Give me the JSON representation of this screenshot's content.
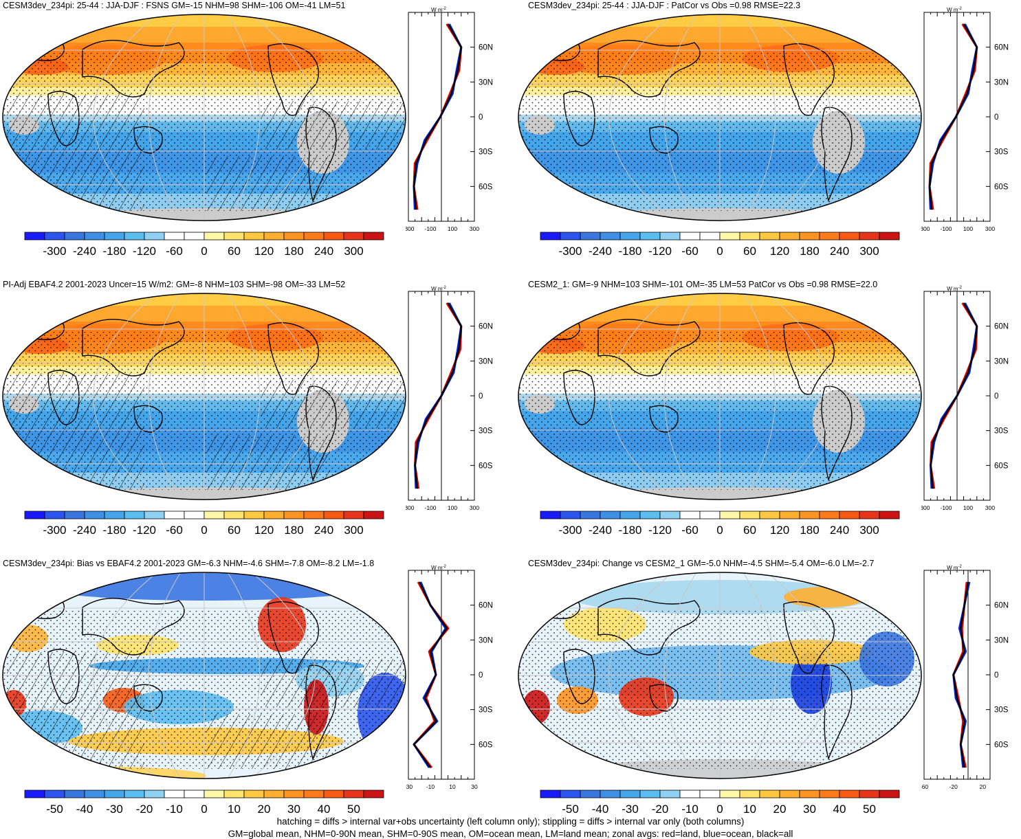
{
  "panels": [
    {
      "title": "CESM3dev_234pi: 25-44 : JJA-DJF : FSNS GM=-15 NHM=98 SHM=-106 OM=-41 LM=51",
      "style": "mean",
      "hatch": true,
      "zonal_xticks": [
        "-300",
        "-100",
        "100",
        "300"
      ],
      "cbar_labels": [
        "-300",
        "-240",
        "-180",
        "-120",
        "-60",
        "0",
        "60",
        "120",
        "180",
        "240",
        "300"
      ]
    },
    {
      "title": "CESM3dev_234pi: 25-44 : JJA-DJF : PatCor vs Obs =0.98 RMSE=22.3",
      "style": "mean",
      "hatch": false,
      "zonal_xticks": [
        "-300",
        "-100",
        "100",
        "300"
      ],
      "cbar_labels": [
        "-300",
        "-240",
        "-180",
        "-120",
        "-60",
        "0",
        "60",
        "120",
        "180",
        "240",
        "300"
      ]
    },
    {
      "title": "PI-Adj EBAF4.2 2001-2023 Uncer=15 W/m2: GM=-8 NHM=103 SHM=-98 OM=-33 LM=52",
      "style": "mean",
      "hatch": true,
      "zonal_xticks": [
        "-300",
        "-100",
        "100",
        "300"
      ],
      "cbar_labels": [
        "-300",
        "-240",
        "-180",
        "-120",
        "-60",
        "0",
        "60",
        "120",
        "180",
        "240",
        "300"
      ]
    },
    {
      "title": "CESM2_1: GM=-9 NHM=103 SHM=-101 OM=-35 LM=53 PatCor vs Obs =0.98 RMSE=22.0",
      "style": "mean",
      "hatch": false,
      "zonal_xticks": [
        "-300",
        "-100",
        "100",
        "300"
      ],
      "cbar_labels": [
        "-300",
        "-240",
        "-180",
        "-120",
        "-60",
        "0",
        "60",
        "120",
        "180",
        "240",
        "300"
      ]
    },
    {
      "title": "CESM3dev_234pi: Bias vs EBAF4.2 2001-2023 GM=-6.3 NHM=-4.6 SHM=-7.8 OM=-8.2 LM=-1.8",
      "style": "diff",
      "hatch": true,
      "zonal_xticks": [
        "-30",
        "-10",
        "10",
        "30"
      ],
      "cbar_labels": [
        "-50",
        "-40",
        "-30",
        "-20",
        "-10",
        "0",
        "10",
        "20",
        "30",
        "40",
        "50"
      ]
    },
    {
      "title": "CESM3dev_234pi: Change vs CESM2_1 GM=-5.0 NHM=-4.5 SHM=-5.4 OM=-6.0 LM=-2.7",
      "style": "diff",
      "hatch": false,
      "zonal_xticks": [
        "-60",
        "-20",
        "20"
      ],
      "cbar_labels": [
        "-50",
        "-40",
        "-30",
        "-20",
        "-10",
        "0",
        "10",
        "20",
        "30",
        "40",
        "50"
      ]
    }
  ],
  "zonal_unit": "W m",
  "zonal_unit_sup": "-2",
  "lat_labels": [
    "60N",
    "30N",
    "0",
    "30S",
    "60S"
  ],
  "colors": {
    "mean_scale": [
      "#1a1aff",
      "#2b55ee",
      "#3a76e0",
      "#3f8fe5",
      "#45a5ea",
      "#5bbdf0",
      "#8fd1f2",
      "#ffffff",
      "#ffffff",
      "#fff8a8",
      "#ffe36a",
      "#ffc840",
      "#ffae30",
      "#ff9422",
      "#ff7a18",
      "#f85a14",
      "#e8341a",
      "#cc1414"
    ],
    "land_missing": "#cccccc",
    "zonal_land": "#ee0000",
    "zonal_ocean": "#0022dd",
    "zonal_all": "#000000"
  },
  "caption_line1": "hatching = diffs > internal var+obs uncertainty (left column only); stippling = diffs > internal var only (both columns)",
  "caption_line2": "GM=global mean, NHM=0-90N mean, SHM=0-90S mean, OM=ocean mean, LM=land mean; zonal avgs: red=land, blue=ocean, black=all",
  "chart_data": [
    {
      "type": "heatmap",
      "title": "CESM3dev_234pi: 25-44 : JJA-DJF : FSNS GM=-15 NHM=98 SHM=-106 OM=-41 LM=51",
      "colorbar": {
        "min": -300,
        "max": 300,
        "step": 60
      },
      "zonal_mean": {
        "xlim": [
          -300,
          300
        ],
        "ylim": [
          -90,
          90
        ],
        "lat": [
          80,
          60,
          40,
          20,
          0,
          -20,
          -40,
          -60,
          -80
        ],
        "all": [
          60,
          180,
          150,
          90,
          -10,
          -140,
          -230,
          -250,
          -230
        ]
      }
    },
    {
      "type": "heatmap",
      "title": "CESM3dev_234pi: 25-44 : JJA-DJF : PatCor vs Obs =0.98 RMSE=22.3",
      "colorbar": {
        "min": -300,
        "max": 300,
        "step": 60
      },
      "zonal_mean": {
        "xlim": [
          -300,
          300
        ],
        "ylim": [
          -90,
          90
        ],
        "lat": [
          80,
          60,
          40,
          20,
          0,
          -20,
          -40,
          -60,
          -80
        ],
        "all": [
          60,
          180,
          150,
          90,
          -10,
          -140,
          -230,
          -250,
          -230
        ]
      }
    },
    {
      "type": "heatmap",
      "title": "PI-Adj EBAF4.2 2001-2023 Uncer=15 W/m2: GM=-8 NHM=103 SHM=-98 OM=-33 LM=52",
      "colorbar": {
        "min": -300,
        "max": 300,
        "step": 60
      },
      "zonal_mean": {
        "xlim": [
          -300,
          300
        ],
        "ylim": [
          -90,
          90
        ],
        "lat": [
          80,
          60,
          40,
          20,
          0,
          -20,
          -40,
          -60,
          -80
        ],
        "all": [
          60,
          180,
          160,
          100,
          0,
          -130,
          -220,
          -240,
          -220
        ]
      }
    },
    {
      "type": "heatmap",
      "title": "CESM2_1: GM=-9 NHM=103 SHM=-101 OM=-35 LM=53 PatCor vs Obs =0.98 RMSE=22.0",
      "colorbar": {
        "min": -300,
        "max": 300,
        "step": 60
      },
      "zonal_mean": {
        "xlim": [
          -300,
          300
        ],
        "ylim": [
          -90,
          90
        ],
        "lat": [
          80,
          60,
          40,
          20,
          0,
          -20,
          -40,
          -60,
          -80
        ],
        "all": [
          60,
          180,
          160,
          100,
          0,
          -130,
          -220,
          -240,
          -220
        ]
      }
    },
    {
      "type": "heatmap",
      "title": "CESM3dev_234pi: Bias vs EBAF4.2 2001-2023 GM=-6.3 NHM=-4.6 SHM=-7.8 OM=-8.2 LM=-1.8",
      "colorbar": {
        "min": -50,
        "max": 50,
        "step": 10
      },
      "zonal_mean": {
        "xlim": [
          -30,
          30
        ],
        "ylim": [
          -90,
          90
        ],
        "lat": [
          80,
          60,
          40,
          20,
          0,
          -20,
          -40,
          -60,
          -80
        ],
        "all": [
          -20,
          -10,
          5,
          -10,
          -5,
          -15,
          -5,
          -25,
          -10
        ]
      }
    },
    {
      "type": "heatmap",
      "title": "CESM3dev_234pi: Change vs CESM2_1 GM=-5.0 NHM=-4.5 SHM=-5.4 OM=-6.0 LM=-2.7",
      "colorbar": {
        "min": -50,
        "max": 50,
        "step": 10
      },
      "zonal_mean": {
        "xlim": [
          -60,
          30
        ],
        "ylim": [
          -90,
          90
        ],
        "lat": [
          80,
          60,
          40,
          20,
          0,
          -20,
          -40,
          -60,
          -80
        ],
        "all": [
          0,
          -5,
          -10,
          -5,
          -20,
          -15,
          -5,
          -10,
          -5
        ]
      }
    }
  ]
}
